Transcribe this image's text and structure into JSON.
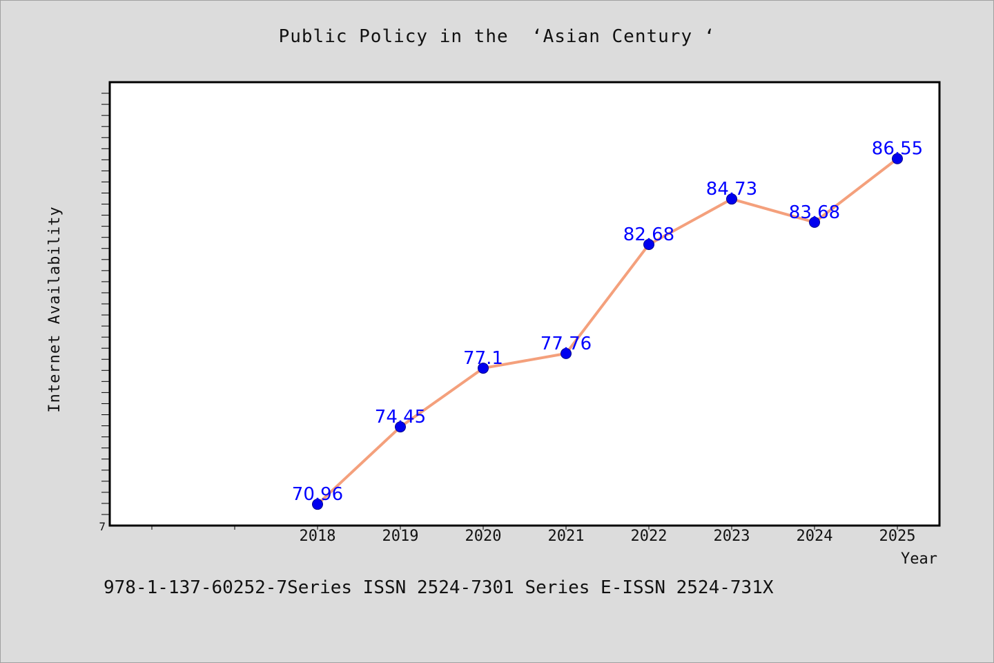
{
  "title": "Public Policy in the  ‘Asian Century ‘",
  "footer": "978-1-137-60252-7Series ISSN 2524-7301 Series E-ISSN 2524-731X",
  "chart_data": {
    "type": "line",
    "title": "Public Policy in the  ‘Asian Century ‘",
    "xlabel": "Year",
    "ylabel": "Internet Availability",
    "categories": [
      "2018",
      "2019",
      "2020",
      "2021",
      "2022",
      "2023",
      "2024",
      "2025"
    ],
    "series": [
      {
        "values": [
          70.96,
          74.45,
          77.1,
          77.76,
          82.68,
          84.73,
          83.68,
          86.55
        ],
        "labels": [
          "70.96",
          "74.45",
          "77.1",
          "77.76",
          "82.68",
          "84.73",
          "83.68",
          "86.55"
        ]
      }
    ],
    "y_tick_labels": [
      "7"
    ],
    "ylim": [
      70,
      90
    ],
    "grid": false,
    "colors": {
      "line": "#f4a07c",
      "marker": "#0000ee",
      "label": "#0000ff"
    }
  }
}
